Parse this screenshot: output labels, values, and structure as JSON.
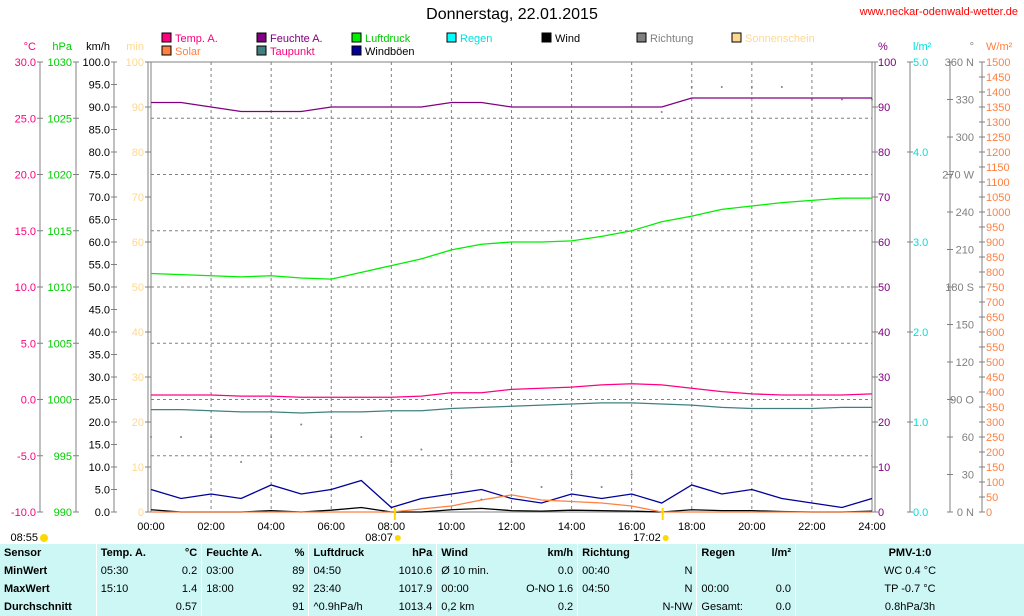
{
  "header": {
    "title": "Donnerstag, 22.01.2015",
    "site": "www.neckar-odenwald-wetter.de"
  },
  "colors": {
    "temp": "#ff0080",
    "humidity": "#800080",
    "pressure": "#00ee00",
    "rain": "#00ffff",
    "wind": "#000000",
    "direction": "#808080",
    "sunshine": "#ffd890",
    "solar": "#ff8040",
    "dewpoint": "#408080",
    "gusts": "#000099"
  },
  "legend": [
    {
      "label": "Temp. A.",
      "color": "#ff0080",
      "text": "#ff0080"
    },
    {
      "label": "Feuchte A.",
      "color": "#800080",
      "text": "#800080"
    },
    {
      "label": "Luftdruck",
      "color": "#00ee00",
      "text": "#00cc00"
    },
    {
      "label": "Regen",
      "color": "#00ffff",
      "text": "#00e0e0"
    },
    {
      "label": "Wind",
      "color": "#000000",
      "text": "#000000"
    },
    {
      "label": "Richtung",
      "color": "#808080",
      "text": "#808080"
    },
    {
      "label": "Sonnenschein",
      "color": "#ffd890",
      "text": "#ffd890"
    },
    {
      "label": "Solar",
      "color": "#ff8040",
      "text": "#ff8040"
    },
    {
      "label": "Taupunkt",
      "color": "#408080",
      "text": "#ff0080"
    },
    {
      "label": "Windböen",
      "color": "#000099",
      "text": "#000000"
    }
  ],
  "chart_data": {
    "type": "line",
    "title": "Donnerstag, 22.01.2015",
    "x_unit": "hour",
    "x_ticks": [
      "00:00",
      "02:00",
      "04:00",
      "06:00",
      "08:00",
      "10:00",
      "12:00",
      "14:00",
      "16:00",
      "18:00",
      "20:00",
      "22:00",
      "24:00"
    ],
    "axes": {
      "temp": {
        "unit": "°C",
        "range": [
          -10,
          30
        ],
        "step": 5
      },
      "pressure": {
        "unit": "hPa",
        "range": [
          990,
          1030
        ],
        "step": 5
      },
      "speed": {
        "unit": "km/h",
        "range": [
          0,
          100
        ],
        "step": 5
      },
      "minutes": {
        "unit": "min",
        "range": [
          0,
          100
        ],
        "step": 10
      },
      "humidity": {
        "unit": "%",
        "range": [
          0,
          100
        ],
        "step": 10
      },
      "rain": {
        "unit": "l/m²",
        "range": [
          0,
          5
        ],
        "step": 1
      },
      "direction": {
        "unit": "°",
        "range": [
          0,
          360
        ],
        "step": 30,
        "compass": {
          "360": "N",
          "270": "W",
          "180": "S",
          "90": "O",
          "0": "N"
        }
      },
      "solar": {
        "unit": "W/m²",
        "range": [
          0,
          1500
        ],
        "step": 50
      }
    },
    "sun": {
      "left_time": "08:55",
      "sunrise": "08:07",
      "sunset": "17:02"
    },
    "series": [
      {
        "name": "Temp. A.",
        "axis": "temp",
        "color": "#ff0080",
        "values": [
          0.4,
          0.4,
          0.4,
          0.3,
          0.3,
          0.2,
          0.2,
          0.2,
          0.2,
          0.3,
          0.6,
          0.6,
          0.9,
          1.0,
          1.1,
          1.3,
          1.4,
          1.3,
          1.0,
          0.7,
          0.5,
          0.4,
          0.4,
          0.4,
          0.5
        ]
      },
      {
        "name": "Taupunkt",
        "axis": "temp",
        "color": "#408080",
        "values": [
          -0.9,
          -0.9,
          -1.0,
          -1.1,
          -1.1,
          -1.2,
          -1.1,
          -1.1,
          -1.0,
          -1.0,
          -0.8,
          -0.7,
          -0.6,
          -0.5,
          -0.4,
          -0.3,
          -0.3,
          -0.4,
          -0.5,
          -0.7,
          -0.8,
          -0.8,
          -0.8,
          -0.7,
          -0.7
        ]
      },
      {
        "name": "Feuchte A.",
        "axis": "humidity",
        "color": "#800080",
        "values": [
          91,
          91,
          90,
          89,
          89,
          89,
          90,
          90,
          90,
          90,
          91,
          91,
          90,
          90,
          90,
          90,
          90,
          90,
          92,
          92,
          92,
          92,
          92,
          92,
          92
        ]
      },
      {
        "name": "Luftdruck",
        "axis": "pressure",
        "color": "#00ee00",
        "values": [
          1011.2,
          1011.1,
          1011.0,
          1010.9,
          1011.0,
          1010.8,
          1010.7,
          1011.3,
          1011.9,
          1012.5,
          1013.3,
          1013.8,
          1014.0,
          1014.0,
          1014.1,
          1014.5,
          1015.0,
          1015.8,
          1016.3,
          1016.9,
          1017.2,
          1017.5,
          1017.7,
          1017.9,
          1017.9
        ]
      },
      {
        "name": "Windböen",
        "axis": "speed",
        "color": "#000099",
        "values": [
          5,
          3,
          4,
          3,
          6,
          4,
          5,
          7,
          1,
          3,
          4,
          5,
          3,
          2,
          4,
          3,
          4,
          2,
          6,
          4,
          5,
          3,
          2,
          1,
          3
        ]
      },
      {
        "name": "Wind",
        "axis": "speed",
        "color": "#000000",
        "values": [
          0.5,
          0,
          0,
          0,
          0.3,
          0,
          0.4,
          1,
          0,
          0,
          0.5,
          0.8,
          0.3,
          0.2,
          0.4,
          0.3,
          0.2,
          0,
          0.5,
          0.3,
          0.3,
          0.1,
          0,
          0,
          0.2
        ]
      },
      {
        "name": "Solar",
        "axis": "solar",
        "color": "#ff8040",
        "values": [
          0,
          0,
          0,
          0,
          0,
          0,
          0,
          0,
          0,
          10,
          20,
          40,
          57,
          40,
          35,
          30,
          20,
          0,
          0,
          0,
          0,
          0,
          0,
          0,
          0
        ]
      },
      {
        "name": "Richtung",
        "axis": "direction",
        "color": "#808080",
        "dots": true,
        "values": [
          60,
          60,
          60,
          40,
          60,
          70,
          60,
          60,
          40,
          50,
          30,
          10,
          40,
          20,
          30,
          20,
          30,
          320,
          340,
          340,
          340,
          340,
          330,
          330,
          330
        ]
      }
    ]
  },
  "stats": {
    "headers": [
      "Sensor",
      "Temp. A.",
      "°C",
      "Feuchte A.",
      "%",
      "Luftdruck",
      "hPa",
      "Wind",
      "km/h",
      "Richtung",
      "",
      "Regen",
      "l/m²",
      "PMV-1:0"
    ],
    "rows": [
      [
        "MinWert",
        "05:30",
        "0.2",
        "03:00",
        "89",
        "04:50",
        "1010.6",
        "Ø 10 min.",
        "0.0",
        "00:40",
        "N",
        "",
        "",
        "WC 0.4 °C"
      ],
      [
        "MaxWert",
        "15:10",
        "1.4",
        "18:00",
        "92",
        "23:40",
        "1017.9",
        "00:00",
        "O-NO 1.6",
        "04:50",
        "N",
        "00:00",
        "0.0",
        "TP -0.7 °C"
      ],
      [
        "Durchschnitt",
        "",
        "0.57",
        "",
        "91",
        "^0.9hPa/h",
        "1013.4",
        "0,2 km",
        "0.2",
        "",
        "N-NW",
        "Gesamt:",
        "0.0",
        "0.8hPa/3h"
      ]
    ]
  }
}
